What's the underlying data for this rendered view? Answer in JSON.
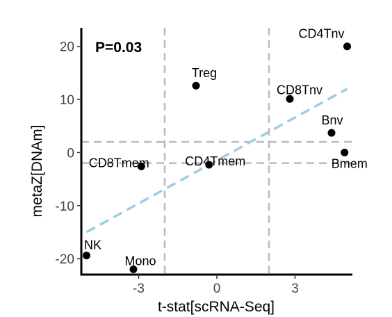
{
  "chart_data": {
    "type": "scatter",
    "title": "",
    "xlabel": "t-stat[scRNA-Seq]",
    "ylabel": "metaZ[DNAm]",
    "annotation": "P=0.03",
    "xlim": [
      -5.2,
      5.2
    ],
    "ylim": [
      -23,
      23.5
    ],
    "x_ticks": [
      {
        "value": -3,
        "label": "-3"
      },
      {
        "value": 0,
        "label": "0"
      },
      {
        "value": 3,
        "label": "3"
      }
    ],
    "y_ticks": [
      {
        "value": 20,
        "label": "20"
      },
      {
        "value": 10,
        "label": "10"
      },
      {
        "value": 0,
        "label": "0"
      },
      {
        "value": -10,
        "label": "-10"
      },
      {
        "value": -20,
        "label": "-20"
      }
    ],
    "reference_lines": {
      "vertical": [
        -2,
        2
      ],
      "horizontal": [
        2,
        -2
      ],
      "color": "#bbbbbb"
    },
    "fit_line": {
      "x": [
        -5,
        5
      ],
      "y": [
        -15,
        12
      ],
      "color": "#9dcfe0"
    },
    "point_color": "#000000",
    "points": [
      {
        "label": "CD4Tnv",
        "x": 5.0,
        "y": 20.0
      },
      {
        "label": "Treg",
        "x": -0.8,
        "y": 12.6
      },
      {
        "label": "CD8Tnv",
        "x": 2.8,
        "y": 10.1
      },
      {
        "label": "Bnv",
        "x": 4.4,
        "y": 3.7
      },
      {
        "label": "Bmem",
        "x": 4.9,
        "y": 0.0
      },
      {
        "label": "CD8Tmem",
        "x": -2.9,
        "y": -2.6
      },
      {
        "label": "CD4Tmem",
        "x": -0.3,
        "y": -2.3
      },
      {
        "label": "NK",
        "x": -5.0,
        "y": -19.4
      },
      {
        "label": "Mono",
        "x": -3.2,
        "y": -22.0
      }
    ]
  }
}
